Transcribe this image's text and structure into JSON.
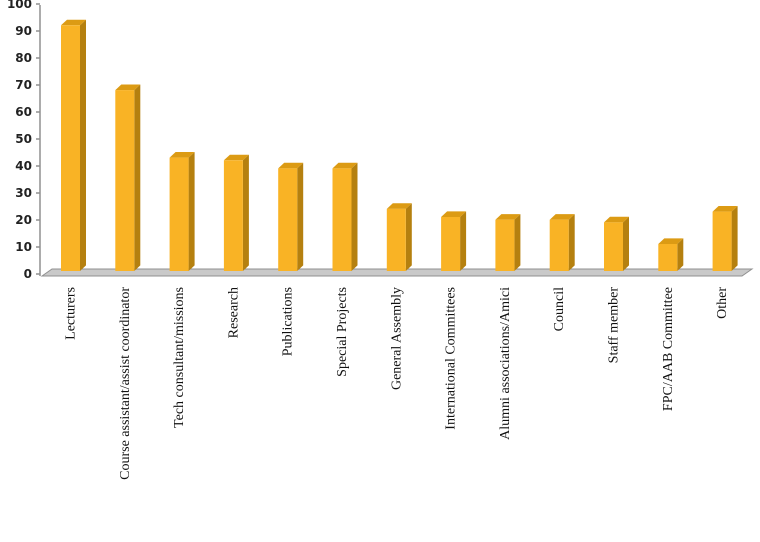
{
  "chart_data": {
    "type": "bar",
    "style": "3d",
    "categories": [
      "Lecturers",
      "Course assistant/assist coordinator",
      "Tech consultant/missions",
      "Research",
      "Publications",
      "Special Projects",
      "General Assembly",
      "International Committees",
      "Alumni associations/Amici",
      "Council",
      "Staff member",
      "FPC/AAB Committee",
      "Other"
    ],
    "values": [
      91,
      67,
      42,
      41,
      38,
      38,
      23,
      20,
      19,
      19,
      18,
      10,
      22
    ],
    "yticks": [
      "0",
      "10",
      "20",
      "30",
      "40",
      "50",
      "60",
      "70",
      "80",
      "90",
      "100"
    ],
    "ylim": [
      0,
      100
    ],
    "grid": false,
    "legend": "none",
    "colors": {
      "bar_front": "#F9B325",
      "bar_side": "#B5800F",
      "bar_top": "#DC9B14",
      "axis": "#909090",
      "floor": "#C9C9C9"
    }
  }
}
